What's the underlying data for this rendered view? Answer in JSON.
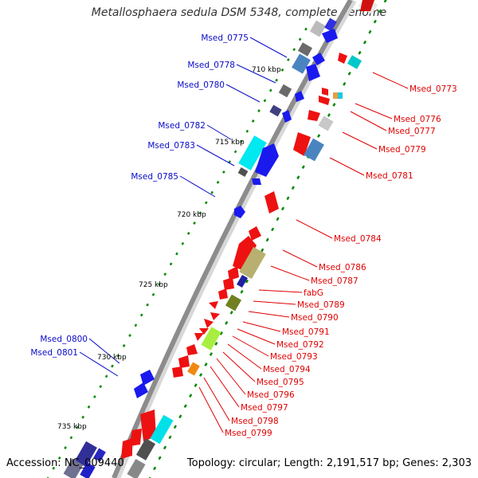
{
  "title": "Metallosphaera sedula DSM 5348, complete genome",
  "footer": {
    "accession": "Accession: NC_009440",
    "summary": "Topology: circular; Length: 2,191,517 bp; Genes: 2,303"
  },
  "colors": {
    "left_label": "#0a0ac8",
    "right_label": "#e00000",
    "backbone": "#8c8c8c",
    "tick": "#008800"
  },
  "scale_labels": [
    "710 kbp",
    "715 kbp",
    "720 kbp",
    "725 kbp",
    "730 kbp",
    "735 kbp"
  ],
  "left_genes": [
    "Msed_0775",
    "Msed_0778",
    "Msed_0780",
    "Msed_0782",
    "Msed_0783",
    "Msed_0785",
    "Msed_0800",
    "Msed_0801"
  ],
  "right_genes": [
    "Msed_0773",
    "Msed_0776",
    "Msed_0777",
    "Msed_0779",
    "Msed_0781",
    "Msed_0784",
    "Msed_0786",
    "Msed_0787",
    "fabG",
    "Msed_0789",
    "Msed_0790",
    "Msed_0791",
    "Msed_0792",
    "Msed_0793",
    "Msed_0794",
    "Msed_0795",
    "Msed_0796",
    "Msed_0797",
    "Msed_0798",
    "Msed_0799"
  ]
}
